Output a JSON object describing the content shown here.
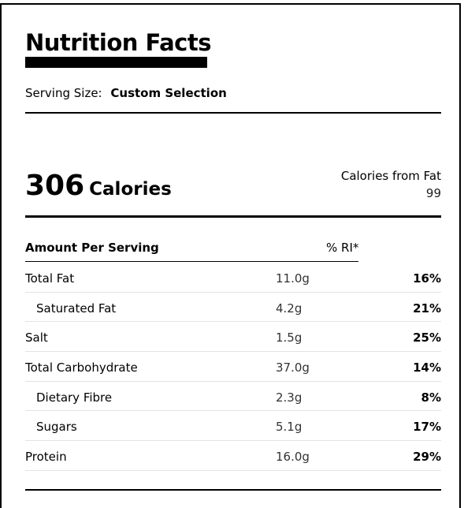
{
  "title": "Nutrition Facts",
  "serving": {
    "label": "Serving Size:",
    "value": "Custom Selection"
  },
  "calories": {
    "value": "306",
    "label": "Calories"
  },
  "calories_from_fat": {
    "label": "Calories from Fat",
    "value": "99"
  },
  "table": {
    "header_amount": "Amount Per Serving",
    "header_ri": "% RI*",
    "rows": [
      {
        "name": "Total Fat",
        "amount": "11.0g",
        "percent": "16%",
        "sub": false
      },
      {
        "name": "Saturated Fat",
        "amount": "4.2g",
        "percent": "21%",
        "sub": true
      },
      {
        "name": "Salt",
        "amount": "1.5g",
        "percent": "25%",
        "sub": false
      },
      {
        "name": "Total Carbohydrate",
        "amount": "37.0g",
        "percent": "14%",
        "sub": false
      },
      {
        "name": "Dietary Fibre",
        "amount": "2.3g",
        "percent": "8%",
        "sub": true
      },
      {
        "name": "Sugars",
        "amount": "5.1g",
        "percent": "17%",
        "sub": true
      },
      {
        "name": "Protein",
        "amount": "16.0g",
        "percent": "29%",
        "sub": false
      }
    ]
  }
}
